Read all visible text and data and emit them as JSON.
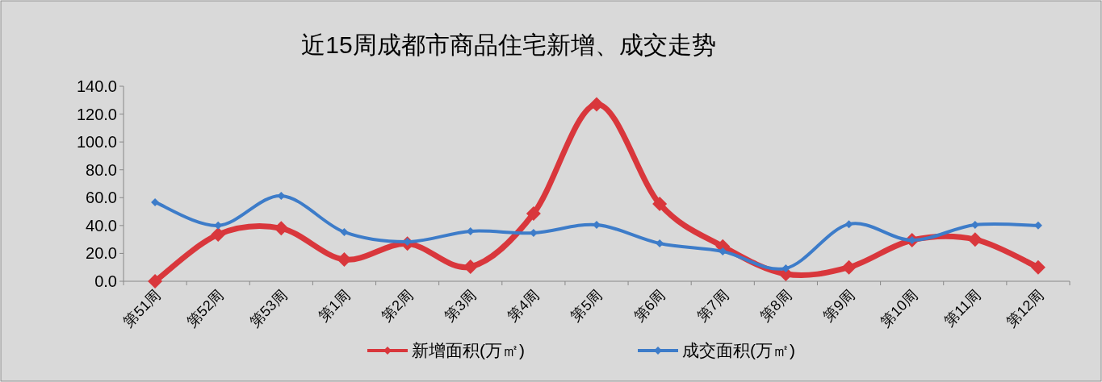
{
  "chart_data": {
    "type": "line",
    "title": "近15周成都市商品住宅新增、成交走势",
    "categories": [
      "第51周",
      "第52周",
      "第53周",
      "第1周",
      "第2周",
      "第3周",
      "第4周",
      "第5周",
      "第6周",
      "第7周",
      "第8周",
      "第9周",
      "第10周",
      "第11周",
      "第12周"
    ],
    "series": [
      {
        "name": "新增面积(万㎡)",
        "color": "#d9373c",
        "values": [
          0,
          33.5,
          38,
          15.6,
          27,
          10.4,
          48.6,
          127,
          55.5,
          25,
          5.2,
          10,
          29.5,
          30,
          10
        ]
      },
      {
        "name": "成交面积(万㎡)",
        "color": "#3d7cc9",
        "values": [
          56.7,
          40,
          61.3,
          35.3,
          28.3,
          35.9,
          34.7,
          40.5,
          27.2,
          21.4,
          9.3,
          41,
          29.5,
          40.5,
          40
        ]
      }
    ],
    "ylim": [
      0,
      140
    ],
    "yticks": [
      {
        "value": 0,
        "label": "0.0"
      },
      {
        "value": 20,
        "label": "20.0"
      },
      {
        "value": 40,
        "label": "40.0"
      },
      {
        "value": 60,
        "label": "60.0"
      },
      {
        "value": 80,
        "label": "80.0"
      },
      {
        "value": 100,
        "label": "100.0"
      },
      {
        "value": 120,
        "label": "120.0"
      },
      {
        "value": 140,
        "label": "140.0"
      }
    ],
    "grid": false,
    "legend": "bottom",
    "marker": "diamond",
    "line_style": "solid"
  }
}
